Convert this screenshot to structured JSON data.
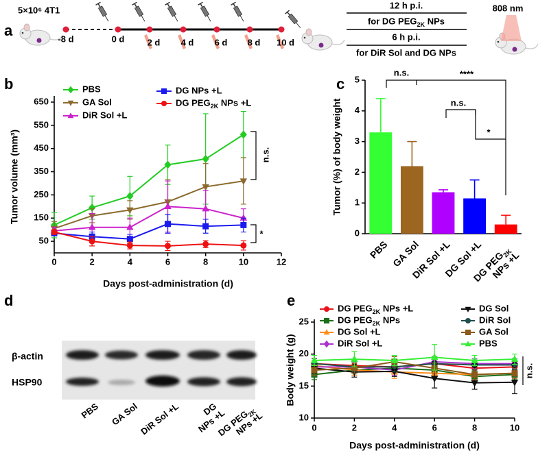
{
  "schematic": {
    "panel_label": "a",
    "cells": "5×10⁶ 4T1",
    "days": [
      "-8 d",
      "0 d",
      "2 d",
      "4 d",
      "6 d",
      "8 d",
      "10 d"
    ],
    "timing_1": "12 h p.i.",
    "group_1": "for DG PEG2K NPs",
    "timing_2": "6 h p.i.",
    "group_2": "for DiR Sol and DG NPs",
    "laser": "808 nm"
  },
  "blot": {
    "panel_label": "d",
    "rows": [
      "β-actin",
      "HSP90"
    ],
    "lanes": [
      "PBS",
      "GA Sol",
      "DiR Sol +L",
      "DG NPs +L",
      "DG PEG2K NPs +L"
    ]
  },
  "chart_data": [
    {
      "type": "line",
      "panel_label": "b",
      "x_label": "Days post-administration (d)",
      "y_label": "Tumor volume (mm³)",
      "x": [
        0,
        2,
        4,
        6,
        8,
        10
      ],
      "xlim": [
        0,
        12
      ],
      "xticks": [
        0,
        2,
        4,
        6,
        8,
        10,
        12
      ],
      "ylim": [
        0,
        650
      ],
      "yticks": [
        50,
        150,
        250,
        350,
        450,
        550,
        650
      ],
      "series": [
        {
          "name": "PBS",
          "color": "#22cc22",
          "marker": "diamond",
          "values": [
            120,
            195,
            245,
            380,
            405,
            510
          ],
          "errors": [
            55,
            50,
            85,
            85,
            195,
            100
          ]
        },
        {
          "name": "GA Sol",
          "color": "#8b6b2e",
          "marker": "triangle-down",
          "values": [
            105,
            160,
            185,
            220,
            285,
            310
          ],
          "errors": [
            30,
            30,
            40,
            95,
            100,
            100
          ]
        },
        {
          "name": "DiR Sol +L",
          "color": "#cc22cc",
          "marker": "triangle",
          "values": [
            95,
            110,
            110,
            200,
            190,
            150
          ],
          "errors": [
            15,
            60,
            40,
            110,
            80,
            40
          ]
        },
        {
          "name": "DG NPs +L",
          "color": "#1a1aee",
          "marker": "square",
          "values": [
            85,
            70,
            60,
            125,
            115,
            120
          ],
          "errors": [
            10,
            20,
            20,
            40,
            30,
            30
          ]
        },
        {
          "name": "DG PEG2K NPs +L",
          "color": "#ee1111",
          "marker": "circle",
          "values": [
            90,
            50,
            32,
            30,
            38,
            32
          ],
          "errors": [
            10,
            20,
            15,
            20,
            15,
            20
          ]
        }
      ],
      "annotations": [
        "n.s.",
        "*"
      ]
    },
    {
      "type": "bar",
      "panel_label": "c",
      "y_label": "Tumor (%) of body weight",
      "categories": [
        "PBS",
        "GA Sol",
        "DiR Sol +L",
        "DG Sol +L",
        "DG PEG2K NPs +L"
      ],
      "values": [
        3.3,
        2.2,
        1.35,
        1.15,
        0.3
      ],
      "errors": [
        1.1,
        0.8,
        0.08,
        0.6,
        0.3
      ],
      "colors": [
        "#33ff33",
        "#9c6520",
        "#b000ff",
        "#0000ff",
        "#ff0000"
      ],
      "ylim": [
        0,
        5
      ],
      "yticks": [
        0,
        1,
        2,
        3,
        4,
        5
      ],
      "annotations": [
        "n.s.",
        "****",
        "n.s.",
        "*"
      ]
    },
    {
      "type": "line",
      "panel_label": "e",
      "x_label": "Days post-administration (d)",
      "y_label": "Body weight (g)",
      "x": [
        0,
        2,
        4,
        6,
        8,
        10
      ],
      "xlim": [
        0,
        10
      ],
      "xticks": [
        0,
        2,
        4,
        6,
        8,
        10
      ],
      "ylim": [
        10,
        25
      ],
      "yticks": [
        10,
        15,
        20,
        25
      ],
      "series": [
        {
          "name": "DG PEG2K NPs +L",
          "color": "#e8141b",
          "marker": "circle",
          "values": [
            18.5,
            18.2,
            18.0,
            18.5,
            17.8,
            18.0
          ],
          "errors": [
            0.8,
            0.8,
            0.8,
            0.8,
            0.8,
            0.8
          ]
        },
        {
          "name": "DG PEG2K NPs",
          "color": "#1a6e1a",
          "marker": "square",
          "values": [
            16.8,
            17.5,
            17.8,
            17.5,
            16.5,
            16.8
          ],
          "errors": [
            0.8,
            0.8,
            0.8,
            0.8,
            0.8,
            0.8
          ]
        },
        {
          "name": "DG Sol +L",
          "color": "#ff8c1a",
          "marker": "triangle",
          "values": [
            18.2,
            17.5,
            17.2,
            17.0,
            16.8,
            17.0
          ],
          "errors": [
            0.8,
            0.8,
            1.0,
            0.8,
            0.8,
            0.8
          ]
        },
        {
          "name": "DiR Sol +L",
          "color": "#aa33cc",
          "marker": "diamond",
          "values": [
            18.0,
            18.0,
            17.5,
            18.8,
            18.5,
            18.5
          ],
          "errors": [
            0.8,
            0.8,
            0.8,
            0.8,
            0.8,
            0.8
          ]
        },
        {
          "name": "DG Sol",
          "color": "#111111",
          "marker": "triangle-down",
          "values": [
            17.8,
            17.2,
            17.3,
            16.2,
            15.5,
            15.6
          ],
          "errors": [
            0.8,
            0.8,
            0.8,
            1.5,
            1.0,
            1.8
          ]
        },
        {
          "name": "DiR Sol",
          "color": "#1f4e4e",
          "marker": "circle",
          "values": [
            18.5,
            18.0,
            18.0,
            18.5,
            18.3,
            18.3
          ],
          "errors": [
            0.8,
            0.8,
            0.8,
            0.8,
            0.8,
            0.8
          ]
        },
        {
          "name": "GA Sol",
          "color": "#8b5a1a",
          "marker": "square",
          "values": [
            17.5,
            17.8,
            18.8,
            17.8,
            16.8,
            17.0
          ],
          "errors": [
            0.8,
            0.8,
            0.8,
            0.8,
            0.8,
            0.8
          ]
        },
        {
          "name": "PBS",
          "color": "#33ee33",
          "marker": "triangle",
          "values": [
            19.0,
            19.2,
            19.0,
            19.5,
            19.0,
            19.2
          ],
          "errors": [
            0.8,
            1.2,
            0.8,
            2.0,
            0.8,
            0.8
          ]
        }
      ],
      "annotations": [
        "n.s."
      ]
    }
  ]
}
